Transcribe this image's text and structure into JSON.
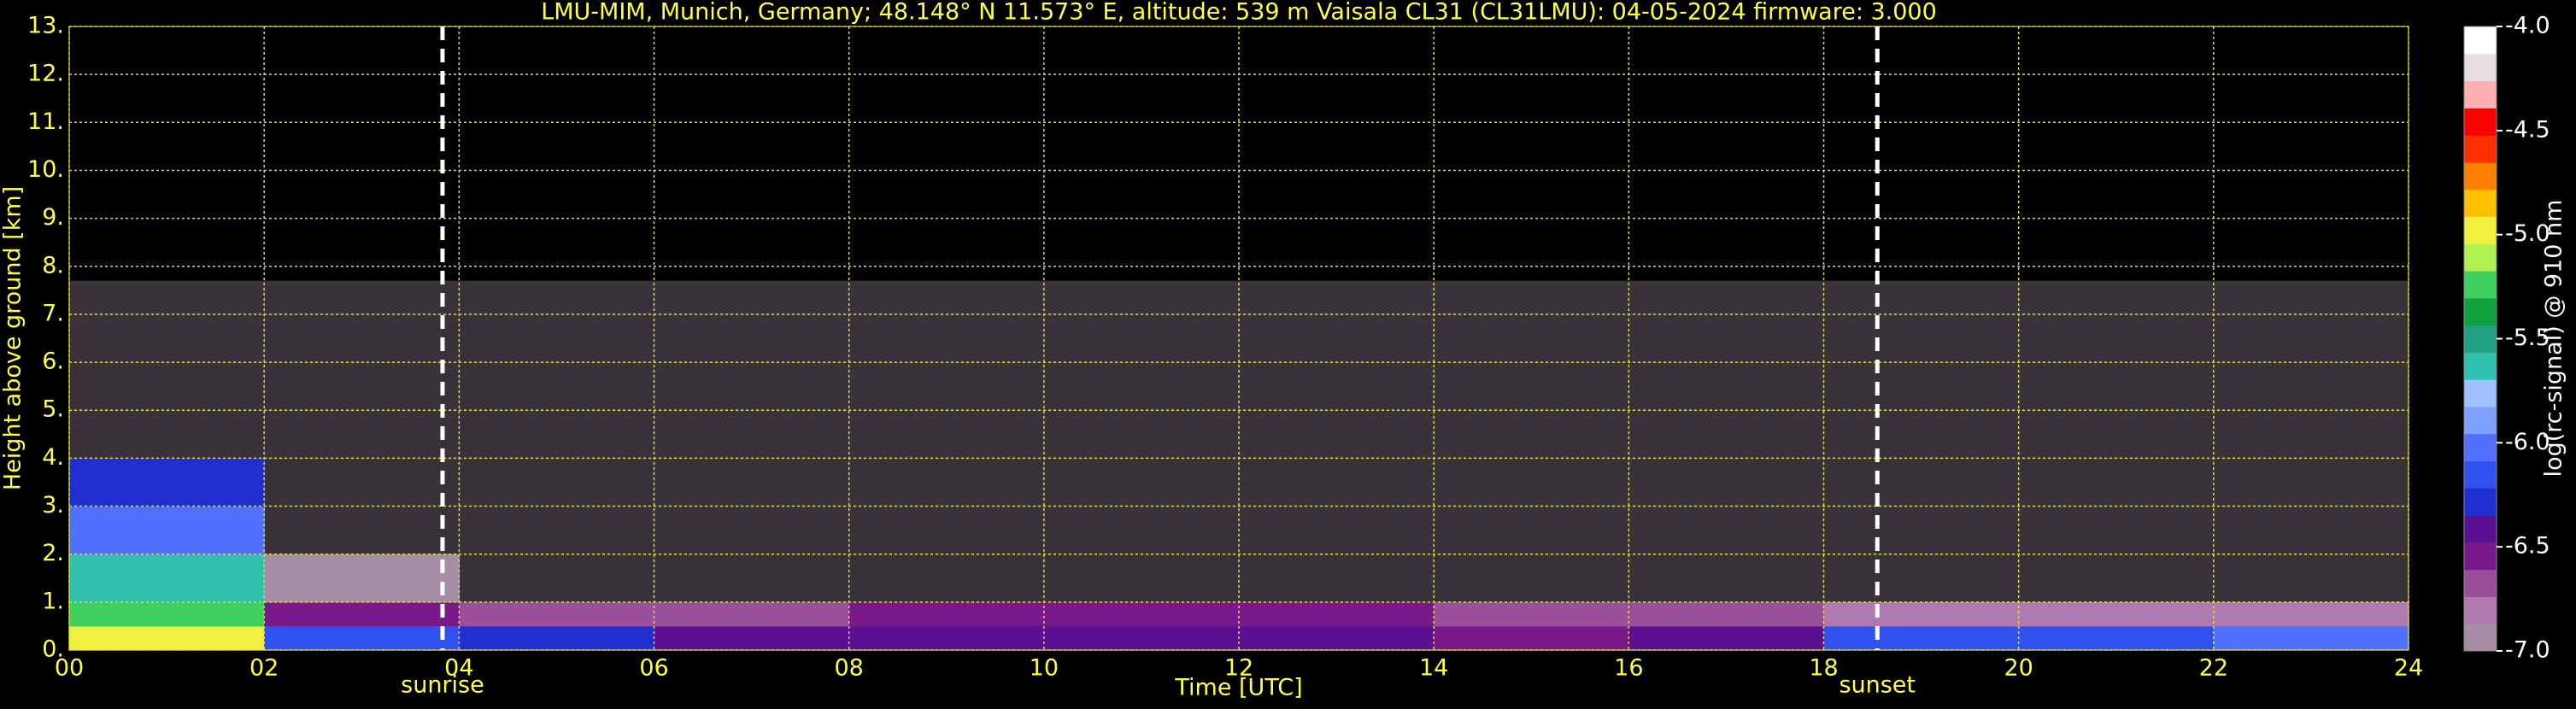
{
  "chart_data": {
    "type": "heatmap",
    "title": "LMU-MIM, Munich, Germany; 48.148° N 11.573° E, altitude: 539 m    Vaisala CL31 (CL31LMU): 04-05-2024    firmware: 3.000",
    "xlabel": "Time [UTC]",
    "ylabel": "Height above ground [km]",
    "xlim": [
      0,
      24
    ],
    "ylim": [
      0,
      13
    ],
    "xticks": [
      {
        "value": 0,
        "label": "00"
      },
      {
        "value": 2,
        "label": "02"
      },
      {
        "value": 4,
        "label": "04"
      },
      {
        "value": 6,
        "label": "06"
      },
      {
        "value": 8,
        "label": "08"
      },
      {
        "value": 10,
        "label": "10"
      },
      {
        "value": 12,
        "label": "12"
      },
      {
        "value": 14,
        "label": "14"
      },
      {
        "value": 16,
        "label": "16"
      },
      {
        "value": 18,
        "label": "18"
      },
      {
        "value": 20,
        "label": "20"
      },
      {
        "value": 22,
        "label": "22"
      },
      {
        "value": 24,
        "label": "24"
      }
    ],
    "yticks": [
      {
        "value": 0,
        "label": "0."
      },
      {
        "value": 1,
        "label": "1."
      },
      {
        "value": 2,
        "label": "2."
      },
      {
        "value": 3,
        "label": "3."
      },
      {
        "value": 4,
        "label": "4."
      },
      {
        "value": 5,
        "label": "5."
      },
      {
        "value": 6,
        "label": "6."
      },
      {
        "value": 7,
        "label": "7."
      },
      {
        "value": 8,
        "label": "8."
      },
      {
        "value": 9,
        "label": "9."
      },
      {
        "value": 10,
        "label": "10."
      },
      {
        "value": 11,
        "label": "11."
      },
      {
        "value": 12,
        "label": "12."
      },
      {
        "value": 13,
        "label": "13."
      }
    ],
    "grid": true,
    "field": {
      "x_edges": [
        0,
        2,
        4,
        6,
        8,
        10,
        12,
        14,
        16,
        18,
        20,
        22,
        24
      ],
      "y_edges": [
        0,
        0.5,
        1,
        2,
        3,
        4,
        5,
        6,
        7,
        7.7
      ],
      "values": [
        [
          -5.0,
          -6.2,
          -6.3,
          -6.4,
          -6.4,
          -6.4,
          -6.4,
          -6.5,
          -6.4,
          -6.1,
          -6.1,
          -6.0
        ],
        [
          -5.2,
          -6.6,
          -6.7,
          -6.7,
          -6.6,
          -6.5,
          -6.6,
          -6.7,
          -6.7,
          -6.8,
          -6.8,
          -6.8
        ],
        [
          -5.6,
          -6.9,
          -7.0,
          -7.0,
          -7.0,
          -7.0,
          -7.0,
          -7.0,
          -7.0,
          -7.0,
          -7.0,
          -7.0
        ],
        [
          -6.0,
          -7.0,
          -7.0,
          -7.0,
          -7.0,
          -7.0,
          -7.0,
          -7.0,
          -7.0,
          -7.0,
          -7.0,
          -7.0
        ],
        [
          -6.3,
          -7.0,
          -7.0,
          -7.0,
          -7.0,
          -7.0,
          -7.0,
          -7.0,
          -7.0,
          -7.0,
          -7.0,
          -7.0
        ],
        [
          -7.0,
          -7.0,
          -7.0,
          -7.0,
          -7.0,
          -7.0,
          -7.0,
          -7.0,
          -7.0,
          -7.0,
          -7.0,
          -7.0
        ],
        [
          -7.0,
          -7.0,
          -7.0,
          -7.0,
          -7.0,
          -7.0,
          -7.0,
          -7.0,
          -7.0,
          -7.0,
          -7.0,
          -7.0
        ],
        [
          -7.0,
          -7.0,
          -7.0,
          -7.0,
          -7.0,
          -7.0,
          -7.0,
          -7.0,
          -7.0,
          -7.0,
          -7.0,
          -7.0
        ],
        [
          -7.0,
          -7.0,
          -7.0,
          -7.0,
          -7.0,
          -7.0,
          -7.0,
          -7.0,
          -7.0,
          -7.0,
          -7.0,
          -7.0
        ]
      ]
    },
    "colorbar": {
      "label": "log(rc-signal) @ 910 nm",
      "lim": [
        -7.0,
        -4.0
      ],
      "ticks": [
        {
          "value": -4.0,
          "label": "-4.0"
        },
        {
          "value": -4.5,
          "label": "-4.5"
        },
        {
          "value": -5.0,
          "label": "-5.0"
        },
        {
          "value": -5.5,
          "label": "-5.5"
        },
        {
          "value": -6.0,
          "label": "-6.0"
        },
        {
          "value": -6.5,
          "label": "-6.5"
        },
        {
          "value": -7.0,
          "label": "-7.0"
        }
      ],
      "colors": [
        "#a58ea5",
        "#b07ab0",
        "#9a4f9a",
        "#7a1a8a",
        "#5a1090",
        "#2030d0",
        "#3050f0",
        "#5070ff",
        "#7fa0ff",
        "#a0c0ff",
        "#30c0b0",
        "#20a080",
        "#10a040",
        "#40d060",
        "#b0f050",
        "#f0f040",
        "#ffc000",
        "#ff8000",
        "#ff3000",
        "#ff0000",
        "#ffb0b0",
        "#e8e0e0",
        "#ffffff"
      ]
    },
    "annotations": [
      {
        "x": 3.83,
        "label": "sunrise"
      },
      {
        "x": 18.55,
        "label": "sunset"
      }
    ]
  }
}
